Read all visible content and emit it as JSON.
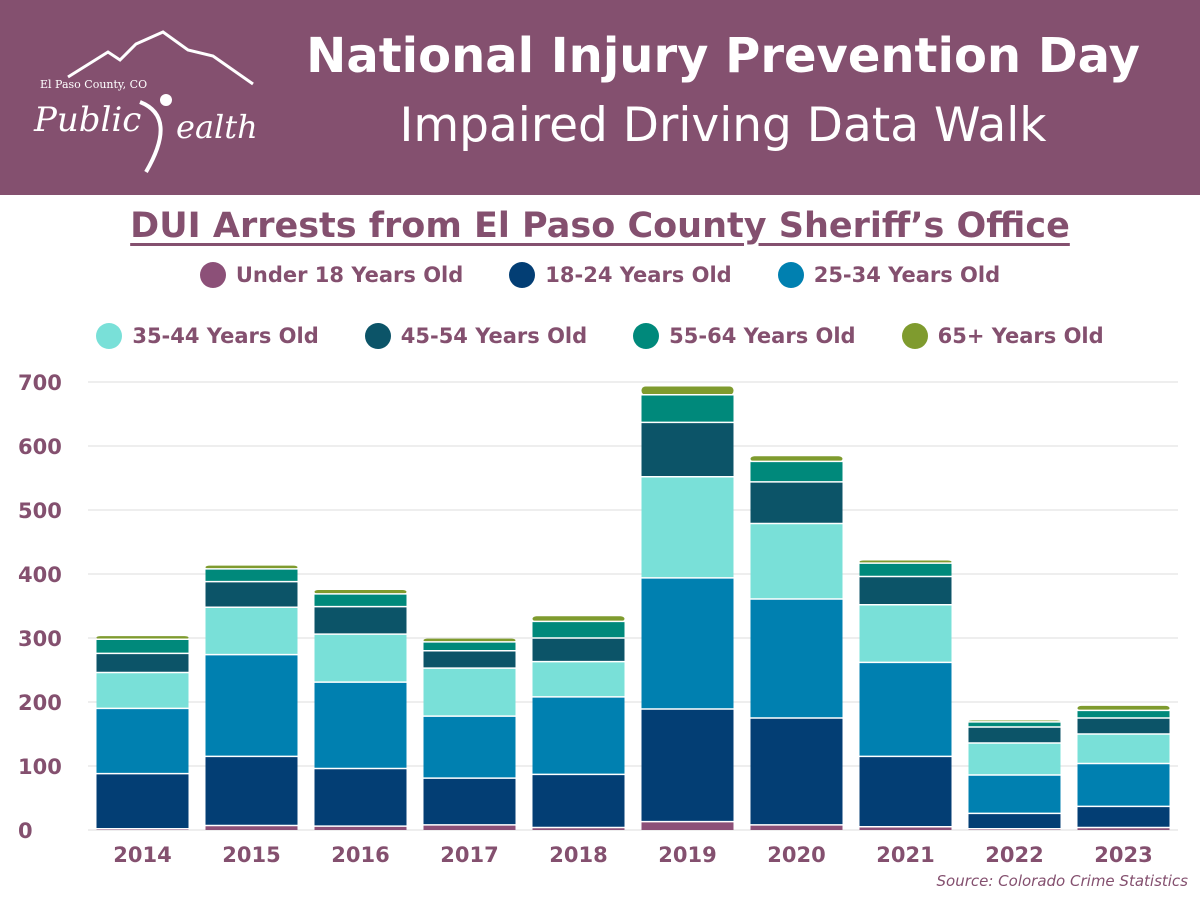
{
  "header": {
    "logo_county": "El Paso County, CO",
    "logo_public": "Public",
    "logo_health": "ealth",
    "title_line1": "National Injury Prevention Day",
    "title_line2": "Impaired Driving Data Walk",
    "banner_color": "#84506f"
  },
  "source": "Source: Colorado Crime Statistics",
  "chart_data": {
    "type": "bar",
    "stacked": true,
    "title": "DUI Arrests from El Paso County Sheriff’s Office",
    "xlabel": "",
    "ylabel": "",
    "ylim": [
      0,
      700
    ],
    "yticks": [
      0,
      100,
      200,
      300,
      400,
      500,
      600,
      700
    ],
    "grid": true,
    "legend_position": "top",
    "categories": [
      "2014",
      "2015",
      "2016",
      "2017",
      "2018",
      "2019",
      "2020",
      "2021",
      "2022",
      "2023"
    ],
    "series": [
      {
        "name": "Under 18 Years Old",
        "color": "#8c5078",
        "values": [
          2,
          7,
          6,
          8,
          4,
          13,
          8,
          5,
          2,
          4
        ]
      },
      {
        "name": "18-24 Years Old",
        "color": "#033e74",
        "values": [
          86,
          108,
          90,
          73,
          83,
          176,
          167,
          110,
          24,
          33
        ]
      },
      {
        "name": "25-34 Years Old",
        "color": "#0080b0",
        "values": [
          102,
          159,
          135,
          97,
          121,
          205,
          186,
          147,
          60,
          67
        ]
      },
      {
        "name": "35-44 Years Old",
        "color": "#79e0d8",
        "values": [
          56,
          74,
          75,
          75,
          55,
          158,
          118,
          90,
          50,
          46
        ]
      },
      {
        "name": "45-54 Years Old",
        "color": "#0c5468",
        "values": [
          30,
          40,
          43,
          27,
          37,
          85,
          65,
          44,
          25,
          25
        ]
      },
      {
        "name": "55-64 Years Old",
        "color": "#00897b",
        "values": [
          22,
          20,
          20,
          14,
          26,
          43,
          32,
          21,
          8,
          12
        ]
      },
      {
        "name": "65+ Years Old",
        "color": "#7f9b2e",
        "values": [
          5,
          5,
          6,
          5,
          8,
          13,
          8,
          4,
          2,
          7
        ]
      }
    ]
  }
}
